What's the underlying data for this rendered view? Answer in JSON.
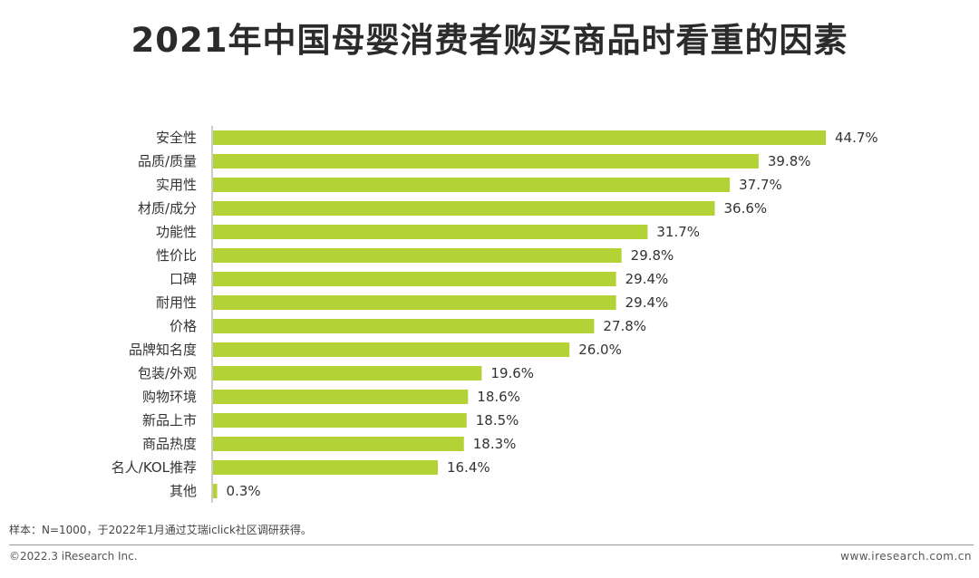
{
  "chart_data": {
    "type": "bar",
    "orientation": "horizontal",
    "title": "2021年中国母婴消费者购买商品时看重的因素",
    "categories": [
      "安全性",
      "品质/质量",
      "实用性",
      "材质/成分",
      "功能性",
      "性价比",
      "口碑",
      "耐用性",
      "价格",
      "品牌知名度",
      "包装/外观",
      "购物环境",
      "新品上市",
      "商品热度",
      "名人/KOL推荐",
      "其他"
    ],
    "values": [
      44.7,
      39.8,
      37.7,
      36.6,
      31.7,
      29.8,
      29.4,
      29.4,
      27.8,
      26.0,
      19.6,
      18.6,
      18.5,
      18.3,
      16.4,
      0.3
    ],
    "value_labels": [
      "44.7%",
      "39.8%",
      "37.7%",
      "36.6%",
      "31.7%",
      "29.8%",
      "29.4%",
      "29.4%",
      "27.8%",
      "26.0%",
      "19.6%",
      "18.6%",
      "18.5%",
      "18.3%",
      "16.4%",
      "0.3%"
    ],
    "unit": "%",
    "xlim": [
      0,
      44.7
    ],
    "grid": false,
    "bar_color": "#b2d235"
  },
  "footer": {
    "sample_note": "样本：N=1000，于2022年1月通过艾瑞iclick社区调研获得。",
    "copyright": "©2022.3 iResearch Inc.",
    "website": "www.iresearch.com.cn"
  }
}
